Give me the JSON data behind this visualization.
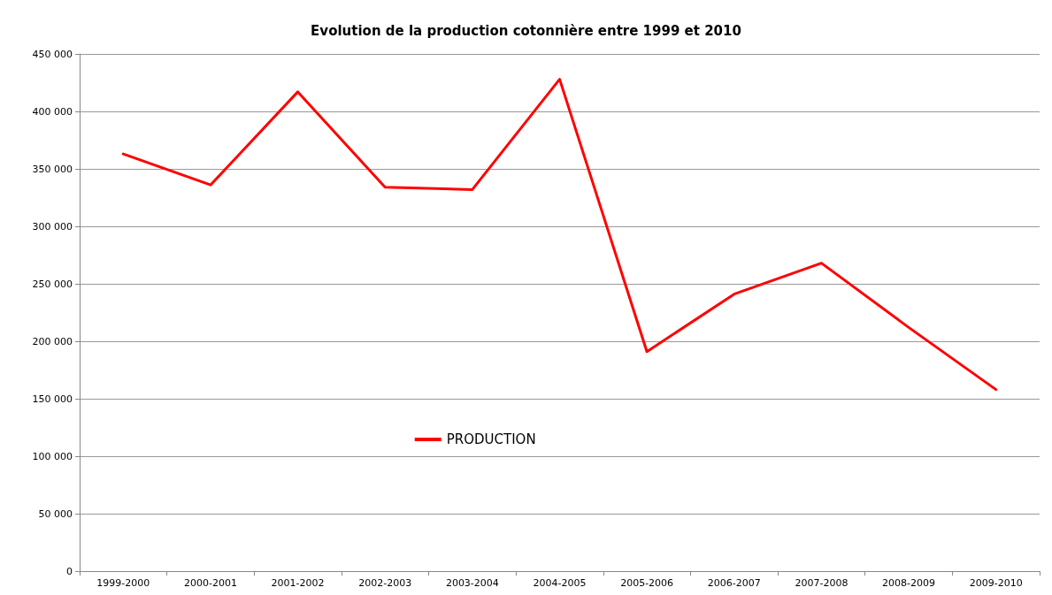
{
  "chart_data": {
    "type": "line",
    "title": "Evolution de la production cotonnière entre 1999 et 2010",
    "categories": [
      "1999-2000",
      "2000-2001",
      "2001-2002",
      "2002-2003",
      "2003-2004",
      "2004-2005",
      "2005-2006",
      "2006-2007",
      "2007-2008",
      "2008-2009",
      "2009-2010"
    ],
    "series": [
      {
        "name": "PRODUCTION",
        "color": "#ff0000",
        "values": [
          363000,
          336000,
          417000,
          334000,
          332000,
          428000,
          191000,
          241000,
          268000,
          212000,
          158000
        ]
      }
    ],
    "ylim": [
      0,
      450000
    ],
    "yticks": [
      0,
      {
        "value": 50000,
        "label": "50 000"
      },
      {
        "value": 100000,
        "label": "100 000"
      },
      {
        "value": 150000,
        "label": "150 000"
      },
      {
        "value": 200000,
        "label": "200 000"
      },
      {
        "value": 250000,
        "label": "250 000"
      },
      {
        "value": 300000,
        "label": "300 000"
      },
      {
        "value": 350000,
        "label": "350 000"
      },
      {
        "value": 400000,
        "label": "400 000"
      },
      {
        "value": 450000,
        "label": "450 000"
      }
    ],
    "grid": "y",
    "legend": "bottom",
    "marker": "none",
    "line_style": "solid"
  }
}
